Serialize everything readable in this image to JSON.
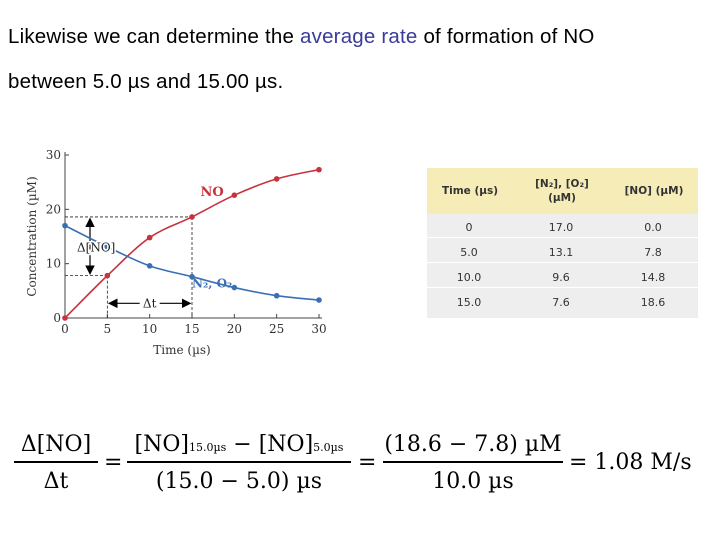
{
  "intro": {
    "line1_pre": "Likewise we can determine the",
    "line1_highlight": "average rate",
    "line1_post": "of formation of NO",
    "line2": "between 5.0 µs and 15.00 µs."
  },
  "chart_data": {
    "type": "line",
    "xlabel": "Time (µs)",
    "ylabel": "Concentration (µM)",
    "xlim": [
      0,
      30
    ],
    "ylim": [
      0,
      30
    ],
    "xticks": [
      0,
      5,
      10,
      15,
      20,
      25,
      30
    ],
    "yticks": [
      0,
      10,
      20,
      30
    ],
    "series": [
      {
        "name": "NO",
        "color": "#c8323c",
        "x": [
          0,
          5,
          10,
          15,
          20,
          25,
          30
        ],
        "y": [
          0.0,
          7.8,
          14.8,
          18.6,
          22.6,
          25.6,
          27.3
        ]
      },
      {
        "name": "N₂, O₂",
        "color": "#3a6fb5",
        "x": [
          0,
          5,
          10,
          15,
          20,
          25,
          30
        ],
        "y": [
          17.0,
          13.1,
          9.6,
          7.6,
          5.6,
          4.1,
          3.3
        ]
      }
    ],
    "annotations": {
      "delta_no": "Δ[NO]",
      "delta_t": "Δt"
    }
  },
  "table": {
    "headers": [
      "Time (µs)",
      "[N₂], [O₂] (µM)",
      "[NO] (µM)"
    ],
    "rows": [
      [
        "0",
        "17.0",
        "0.0"
      ],
      [
        "5.0",
        "13.1",
        "7.8"
      ],
      [
        "10.0",
        "9.6",
        "14.8"
      ],
      [
        "15.0",
        "7.6",
        "18.6"
      ]
    ]
  },
  "equation": {
    "lhs_num": "Δ[NO]",
    "lhs_den": "Δt",
    "mid_num_a": "[NO]",
    "mid_num_a_sub": "15.0µs",
    "mid_num_minus": " − [NO]",
    "mid_num_b_sub": "5.0µs",
    "mid_den": "(15.0 − 5.0) µs",
    "rhs_num": "(18.6 − 7.8) µM",
    "rhs_den": "10.0 µs",
    "result": "= 1.08 M/s"
  }
}
